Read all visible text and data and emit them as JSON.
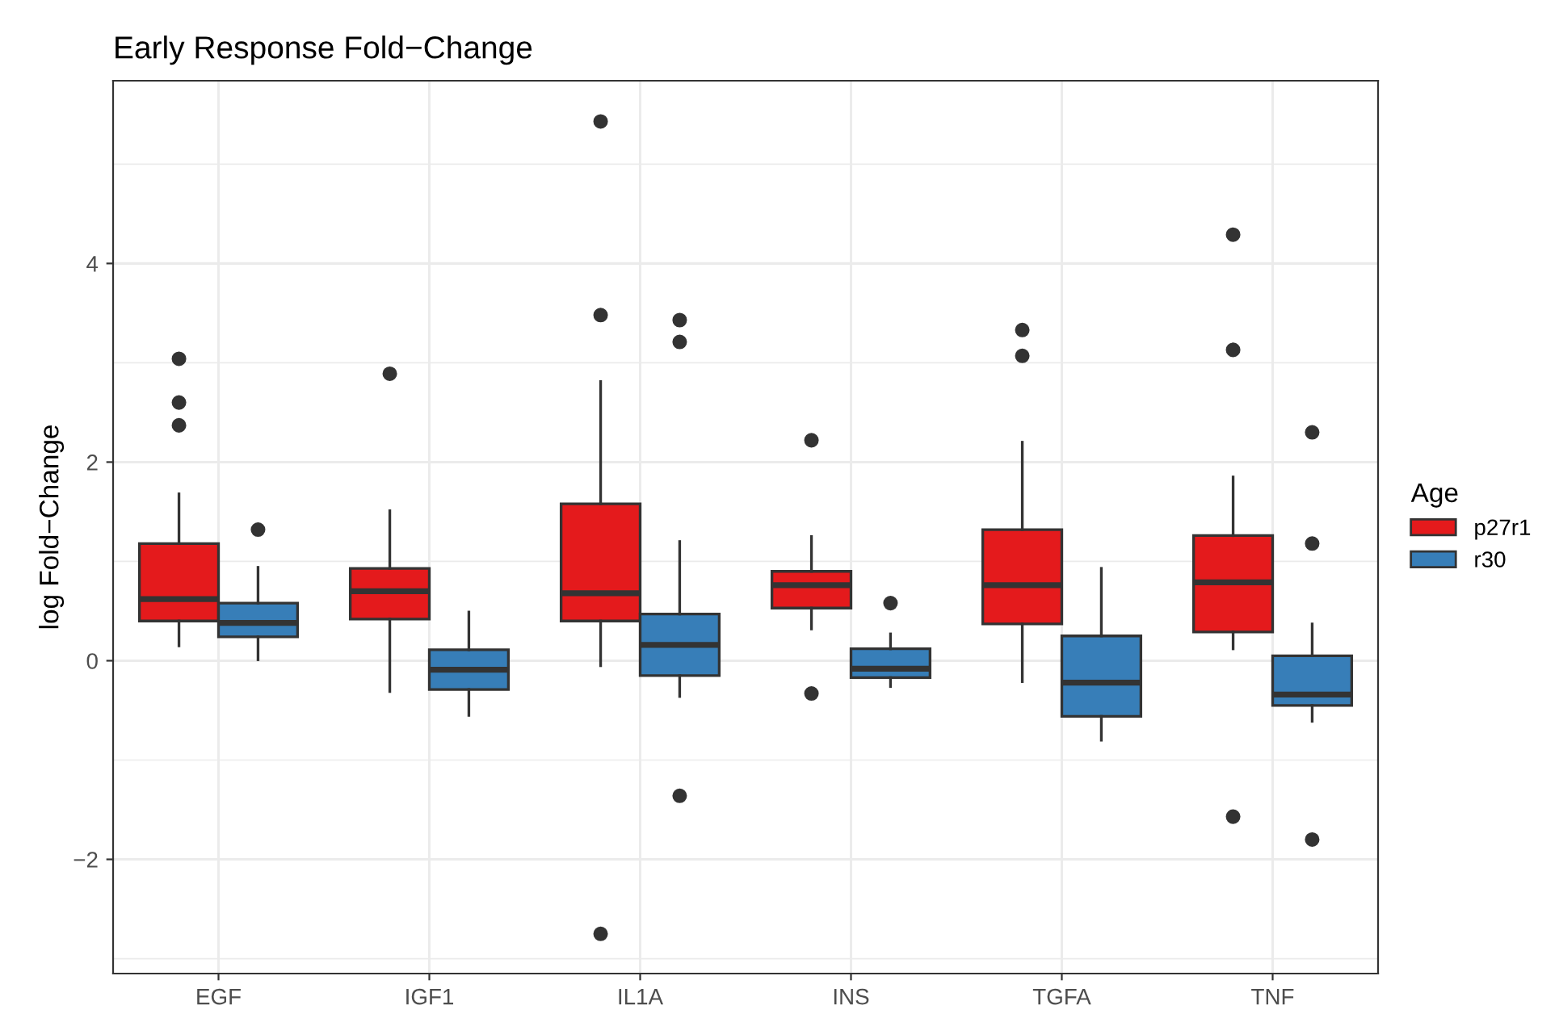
{
  "chart_data": {
    "type": "box",
    "title": "Early Response Fold−Change",
    "ylabel": "log Fold−Change",
    "legend_title": "Age",
    "categories": [
      "EGF",
      "IGF1",
      "IL1A",
      "INS",
      "TGFA",
      "TNF"
    ],
    "series": [
      {
        "name": "p27r1",
        "color": "#e41a1c",
        "boxes": [
          {
            "low": 0.15,
            "q1": 0.4,
            "median": 0.62,
            "q3": 1.18,
            "high": 1.68,
            "outliers": [
              3.04,
              2.6,
              2.37
            ]
          },
          {
            "low": -0.31,
            "q1": 0.42,
            "median": 0.7,
            "q3": 0.93,
            "high": 1.51,
            "outliers": [
              2.89
            ]
          },
          {
            "low": -0.05,
            "q1": 0.4,
            "median": 0.68,
            "q3": 1.58,
            "high": 2.81,
            "outliers": [
              5.43,
              3.48,
              -2.75
            ]
          },
          {
            "low": 0.32,
            "q1": 0.53,
            "median": 0.76,
            "q3": 0.9,
            "high": 1.25,
            "outliers": [
              2.22,
              -0.33
            ]
          },
          {
            "low": -0.21,
            "q1": 0.37,
            "median": 0.76,
            "q3": 1.32,
            "high": 2.2,
            "outliers": [
              3.33,
              3.07
            ]
          },
          {
            "low": 0.12,
            "q1": 0.29,
            "median": 0.79,
            "q3": 1.26,
            "high": 1.85,
            "outliers": [
              4.29,
              3.13,
              -1.57
            ]
          }
        ]
      },
      {
        "name": "r30",
        "color": "#377eb8",
        "boxes": [
          {
            "low": 0.01,
            "q1": 0.24,
            "median": 0.38,
            "q3": 0.58,
            "high": 0.94,
            "outliers": [
              1.32
            ]
          },
          {
            "low": -0.55,
            "q1": -0.29,
            "median": -0.09,
            "q3": 0.11,
            "high": 0.49
          },
          {
            "low": -0.36,
            "q1": -0.15,
            "median": 0.16,
            "q3": 0.47,
            "high": 1.2,
            "outliers": [
              3.43,
              3.21,
              -1.36
            ]
          },
          {
            "low": -0.26,
            "q1": -0.17,
            "median": -0.08,
            "q3": 0.12,
            "high": 0.27,
            "outliers": [
              0.58
            ]
          },
          {
            "low": -0.8,
            "q1": -0.56,
            "median": -0.22,
            "q3": 0.25,
            "high": 0.93
          },
          {
            "low": -0.61,
            "q1": -0.45,
            "median": -0.34,
            "q3": 0.05,
            "high": 0.37,
            "outliers": [
              2.3,
              1.18,
              -1.8
            ]
          }
        ]
      }
    ],
    "ylim": [
      -3.15,
      5.84
    ],
    "yticks": [
      -2,
      0,
      2,
      4
    ],
    "grid": true,
    "legend": "right"
  }
}
